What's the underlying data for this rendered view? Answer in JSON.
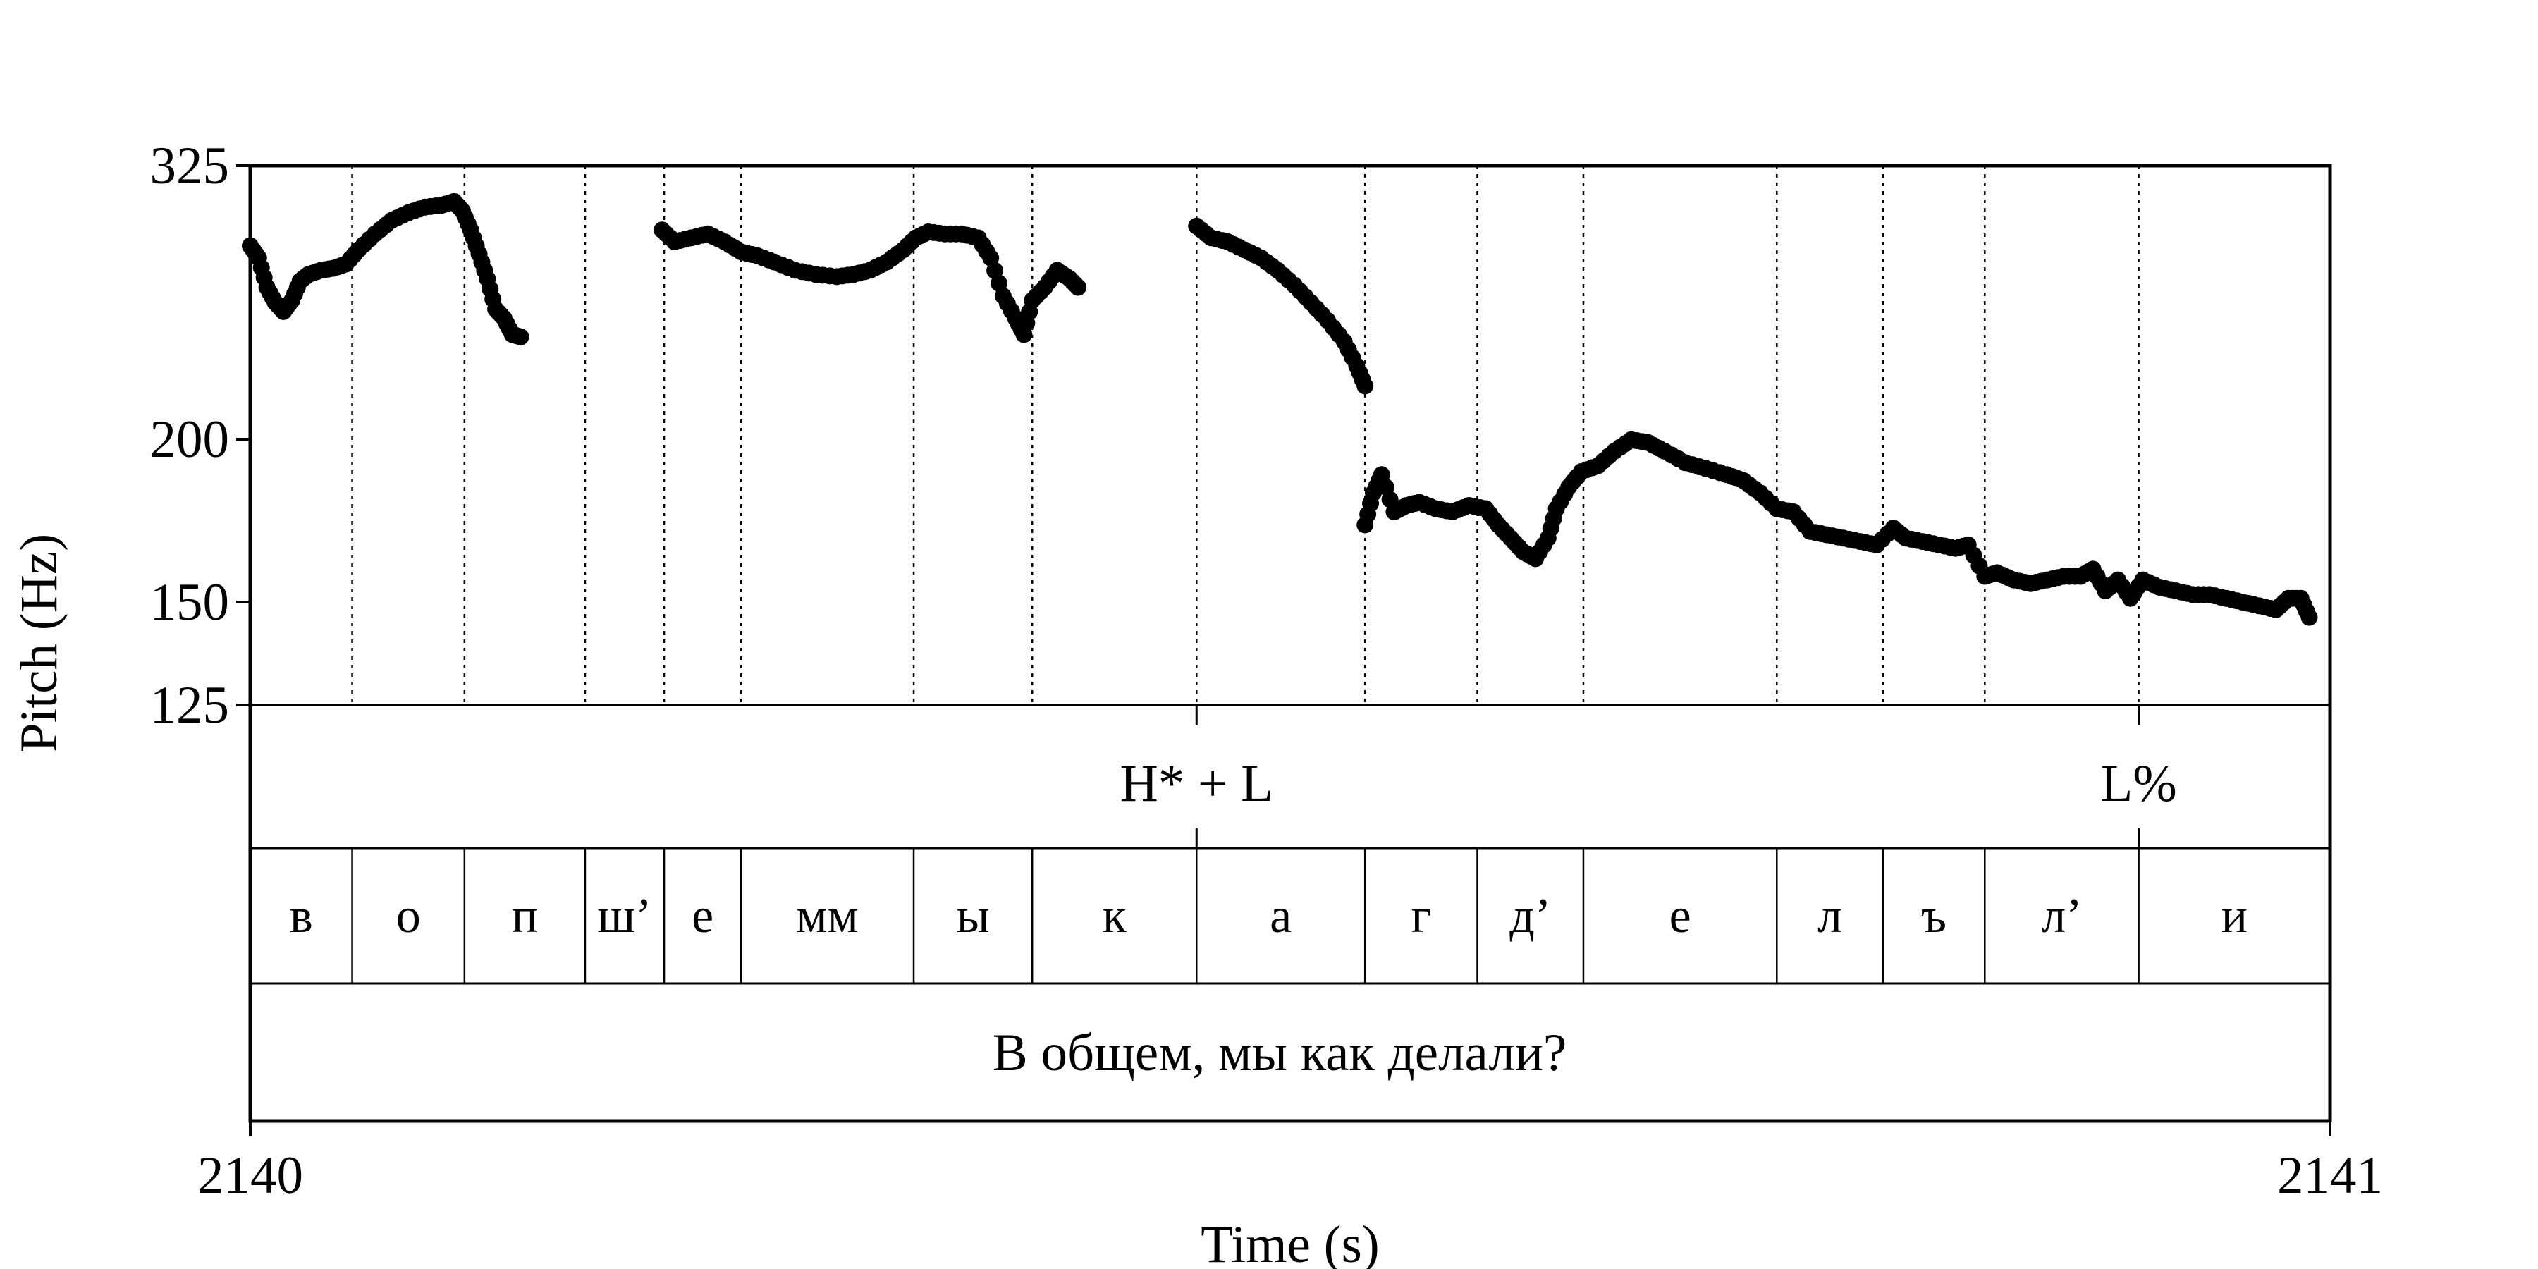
{
  "chart_data": {
    "type": "scatter",
    "xlabel": "Time (s)",
    "ylabel": "Pitch (Hz)",
    "xlim": [
      2140,
      2141
    ],
    "ylim": [
      125,
      325
    ],
    "y_scale": "log",
    "xticks": [
      "2140",
      "2141"
    ],
    "yticks": [
      {
        "value": 325,
        "label": "325"
      },
      {
        "value": 200,
        "label": "200"
      },
      {
        "value": 150,
        "label": "150"
      },
      {
        "value": 125,
        "label": "125"
      }
    ],
    "segments": [
      {
        "label": "в",
        "start": 2140.0,
        "end": 2140.049
      },
      {
        "label": "о",
        "start": 2140.049,
        "end": 2140.103
      },
      {
        "label": "п",
        "start": 2140.103,
        "end": 2140.161
      },
      {
        "label": "ш’",
        "start": 2140.161,
        "end": 2140.199
      },
      {
        "label": "е",
        "start": 2140.199,
        "end": 2140.236
      },
      {
        "label": "мм",
        "start": 2140.236,
        "end": 2140.319
      },
      {
        "label": "ы",
        "start": 2140.319,
        "end": 2140.376
      },
      {
        "label": "к",
        "start": 2140.376,
        "end": 2140.455
      },
      {
        "label": "а",
        "start": 2140.455,
        "end": 2140.536
      },
      {
        "label": "г",
        "start": 2140.536,
        "end": 2140.59
      },
      {
        "label": "д’",
        "start": 2140.59,
        "end": 2140.641
      },
      {
        "label": "е",
        "start": 2140.641,
        "end": 2140.734
      },
      {
        "label": "л",
        "start": 2140.734,
        "end": 2140.785
      },
      {
        "label": "ъ",
        "start": 2140.785,
        "end": 2140.834
      },
      {
        "label": "л’",
        "start": 2140.834,
        "end": 2140.908
      },
      {
        "label": "и",
        "start": 2140.908,
        "end": 2141.0
      }
    ],
    "tones": [
      {
        "label": "H* + L",
        "time": 2140.455
      },
      {
        "label": "L%",
        "time": 2140.908
      }
    ],
    "sentence": "В общем, мы как делали?",
    "pitch_contours": [
      [
        [
          2140.0,
          282
        ],
        [
          2140.004,
          276
        ],
        [
          2140.008,
          262
        ],
        [
          2140.012,
          255
        ],
        [
          2140.016,
          251
        ],
        [
          2140.02,
          256
        ],
        [
          2140.024,
          265
        ],
        [
          2140.028,
          268
        ],
        [
          2140.034,
          270
        ],
        [
          2140.04,
          271
        ],
        [
          2140.046,
          273
        ],
        [
          2140.052,
          280
        ],
        [
          2140.06,
          288
        ],
        [
          2140.068,
          295
        ],
        [
          2140.076,
          299
        ],
        [
          2140.084,
          302
        ],
        [
          2140.092,
          303
        ],
        [
          2140.098,
          305
        ],
        [
          2140.102,
          300
        ],
        [
          2140.106,
          290
        ],
        [
          2140.11,
          278
        ],
        [
          2140.114,
          266
        ],
        [
          2140.118,
          252
        ],
        [
          2140.122,
          248
        ],
        [
          2140.126,
          241
        ],
        [
          2140.13,
          240
        ]
      ],
      [
        [
          2140.198,
          290
        ],
        [
          2140.204,
          284
        ],
        [
          2140.212,
          286
        ],
        [
          2140.22,
          288
        ],
        [
          2140.228,
          284
        ],
        [
          2140.236,
          279
        ],
        [
          2140.244,
          277
        ],
        [
          2140.252,
          274
        ],
        [
          2140.262,
          270
        ],
        [
          2140.272,
          268
        ],
        [
          2140.282,
          267
        ],
        [
          2140.29,
          268
        ],
        [
          2140.298,
          270
        ],
        [
          2140.306,
          274
        ],
        [
          2140.314,
          280
        ],
        [
          2140.32,
          286
        ],
        [
          2140.326,
          289
        ],
        [
          2140.334,
          288
        ],
        [
          2140.342,
          288
        ],
        [
          2140.35,
          286
        ],
        [
          2140.356,
          276
        ],
        [
          2140.362,
          258
        ],
        [
          2140.368,
          248
        ],
        [
          2140.372,
          241
        ],
        [
          2140.376,
          256
        ],
        [
          2140.382,
          262
        ],
        [
          2140.388,
          270
        ],
        [
          2140.394,
          266
        ],
        [
          2140.398,
          262
        ]
      ],
      [
        [
          2140.455,
          292
        ],
        [
          2140.462,
          286
        ],
        [
          2140.47,
          284
        ],
        [
          2140.478,
          280
        ],
        [
          2140.486,
          276
        ],
        [
          2140.494,
          270
        ],
        [
          2140.502,
          263
        ],
        [
          2140.51,
          255
        ],
        [
          2140.518,
          247
        ],
        [
          2140.526,
          238
        ],
        [
          2140.532,
          228
        ],
        [
          2140.536,
          220
        ]
      ],
      [
        [
          2140.536,
          172
        ],
        [
          2140.54,
          182
        ],
        [
          2140.544,
          188
        ],
        [
          2140.55,
          176
        ],
        [
          2140.556,
          178
        ],
        [
          2140.562,
          179
        ],
        [
          2140.57,
          177
        ],
        [
          2140.578,
          176
        ],
        [
          2140.586,
          178
        ],
        [
          2140.594,
          177
        ],
        [
          2140.6,
          172
        ],
        [
          2140.606,
          168
        ],
        [
          2140.612,
          164
        ],
        [
          2140.618,
          162
        ],
        [
          2140.624,
          168
        ],
        [
          2140.628,
          177
        ],
        [
          2140.634,
          184
        ],
        [
          2140.64,
          189
        ],
        [
          2140.648,
          191
        ],
        [
          2140.656,
          196
        ],
        [
          2140.664,
          200
        ],
        [
          2140.672,
          199
        ],
        [
          2140.68,
          196
        ],
        [
          2140.69,
          192
        ],
        [
          2140.7,
          190
        ],
        [
          2140.71,
          188
        ],
        [
          2140.718,
          186
        ],
        [
          2140.726,
          182
        ],
        [
          2140.734,
          177
        ],
        [
          2140.742,
          176
        ],
        [
          2140.75,
          170
        ],
        [
          2140.758,
          169
        ],
        [
          2140.766,
          168
        ],
        [
          2140.774,
          167
        ],
        [
          2140.782,
          166
        ],
        [
          2140.79,
          171
        ],
        [
          2140.796,
          168
        ],
        [
          2140.804,
          167
        ],
        [
          2140.812,
          166
        ],
        [
          2140.82,
          165
        ],
        [
          2140.826,
          166
        ],
        [
          2140.834,
          157
        ],
        [
          2140.84,
          158
        ],
        [
          2140.848,
          156
        ],
        [
          2140.856,
          155
        ],
        [
          2140.864,
          156
        ],
        [
          2140.872,
          157
        ],
        [
          2140.88,
          157
        ],
        [
          2140.886,
          159
        ],
        [
          2140.892,
          153
        ],
        [
          2140.898,
          156
        ],
        [
          2140.904,
          151
        ],
        [
          2140.91,
          156
        ],
        [
          2140.918,
          154
        ],
        [
          2140.926,
          153
        ],
        [
          2140.934,
          152
        ],
        [
          2140.942,
          152
        ],
        [
          2140.95,
          151
        ],
        [
          2140.958,
          150
        ],
        [
          2140.966,
          149
        ],
        [
          2140.974,
          148
        ],
        [
          2140.98,
          151
        ],
        [
          2140.986,
          151
        ],
        [
          2140.99,
          146
        ]
      ]
    ]
  }
}
